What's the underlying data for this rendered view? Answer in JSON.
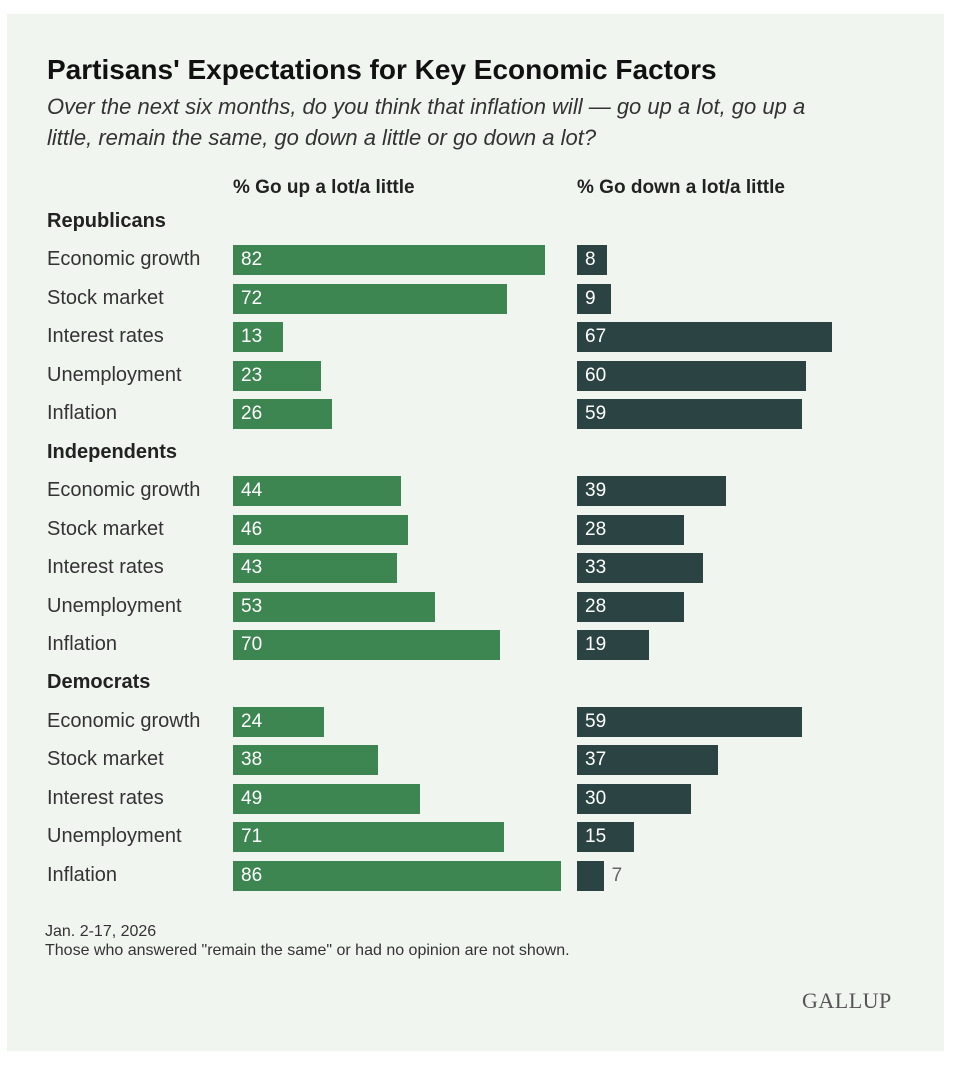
{
  "title": "Partisans' Expectations for Key Economic Factors",
  "subtitle_lines": [
    "Over the next six months, do you think that inflation will — go up a lot, go up a",
    "little, remain the same, go down a little or go down a lot?"
  ],
  "footnotes": [
    "Jan. 2-17, 2026",
    "Those who answered \"remain the same\" or had no opinion are not shown."
  ],
  "logo": "GALLUP",
  "colors": {
    "up": "#3d8551",
    "down": "#2b4443",
    "background": "#f1f5f0"
  },
  "chart_data": {
    "type": "bar",
    "title": "Partisans' Expectations for Key Economic Factors",
    "series": [
      {
        "name": "% Go up a lot/a little"
      },
      {
        "name": "% Go down a lot/a little"
      }
    ],
    "xlim": [
      0,
      100
    ],
    "groups": [
      {
        "name": "Republicans",
        "categories": [
          "Economic growth",
          "Stock market",
          "Interest rates",
          "Unemployment",
          "Inflation"
        ],
        "up": [
          82,
          72,
          13,
          23,
          26
        ],
        "down": [
          8,
          9,
          67,
          60,
          59
        ]
      },
      {
        "name": "Independents",
        "categories": [
          "Economic growth",
          "Stock market",
          "Interest rates",
          "Unemployment",
          "Inflation"
        ],
        "up": [
          44,
          46,
          43,
          53,
          70
        ],
        "down": [
          39,
          28,
          33,
          28,
          19
        ]
      },
      {
        "name": "Democrats",
        "categories": [
          "Economic growth",
          "Stock market",
          "Interest rates",
          "Unemployment",
          "Inflation"
        ],
        "up": [
          24,
          38,
          49,
          71,
          86
        ],
        "down": [
          59,
          37,
          30,
          15,
          7
        ]
      }
    ]
  }
}
